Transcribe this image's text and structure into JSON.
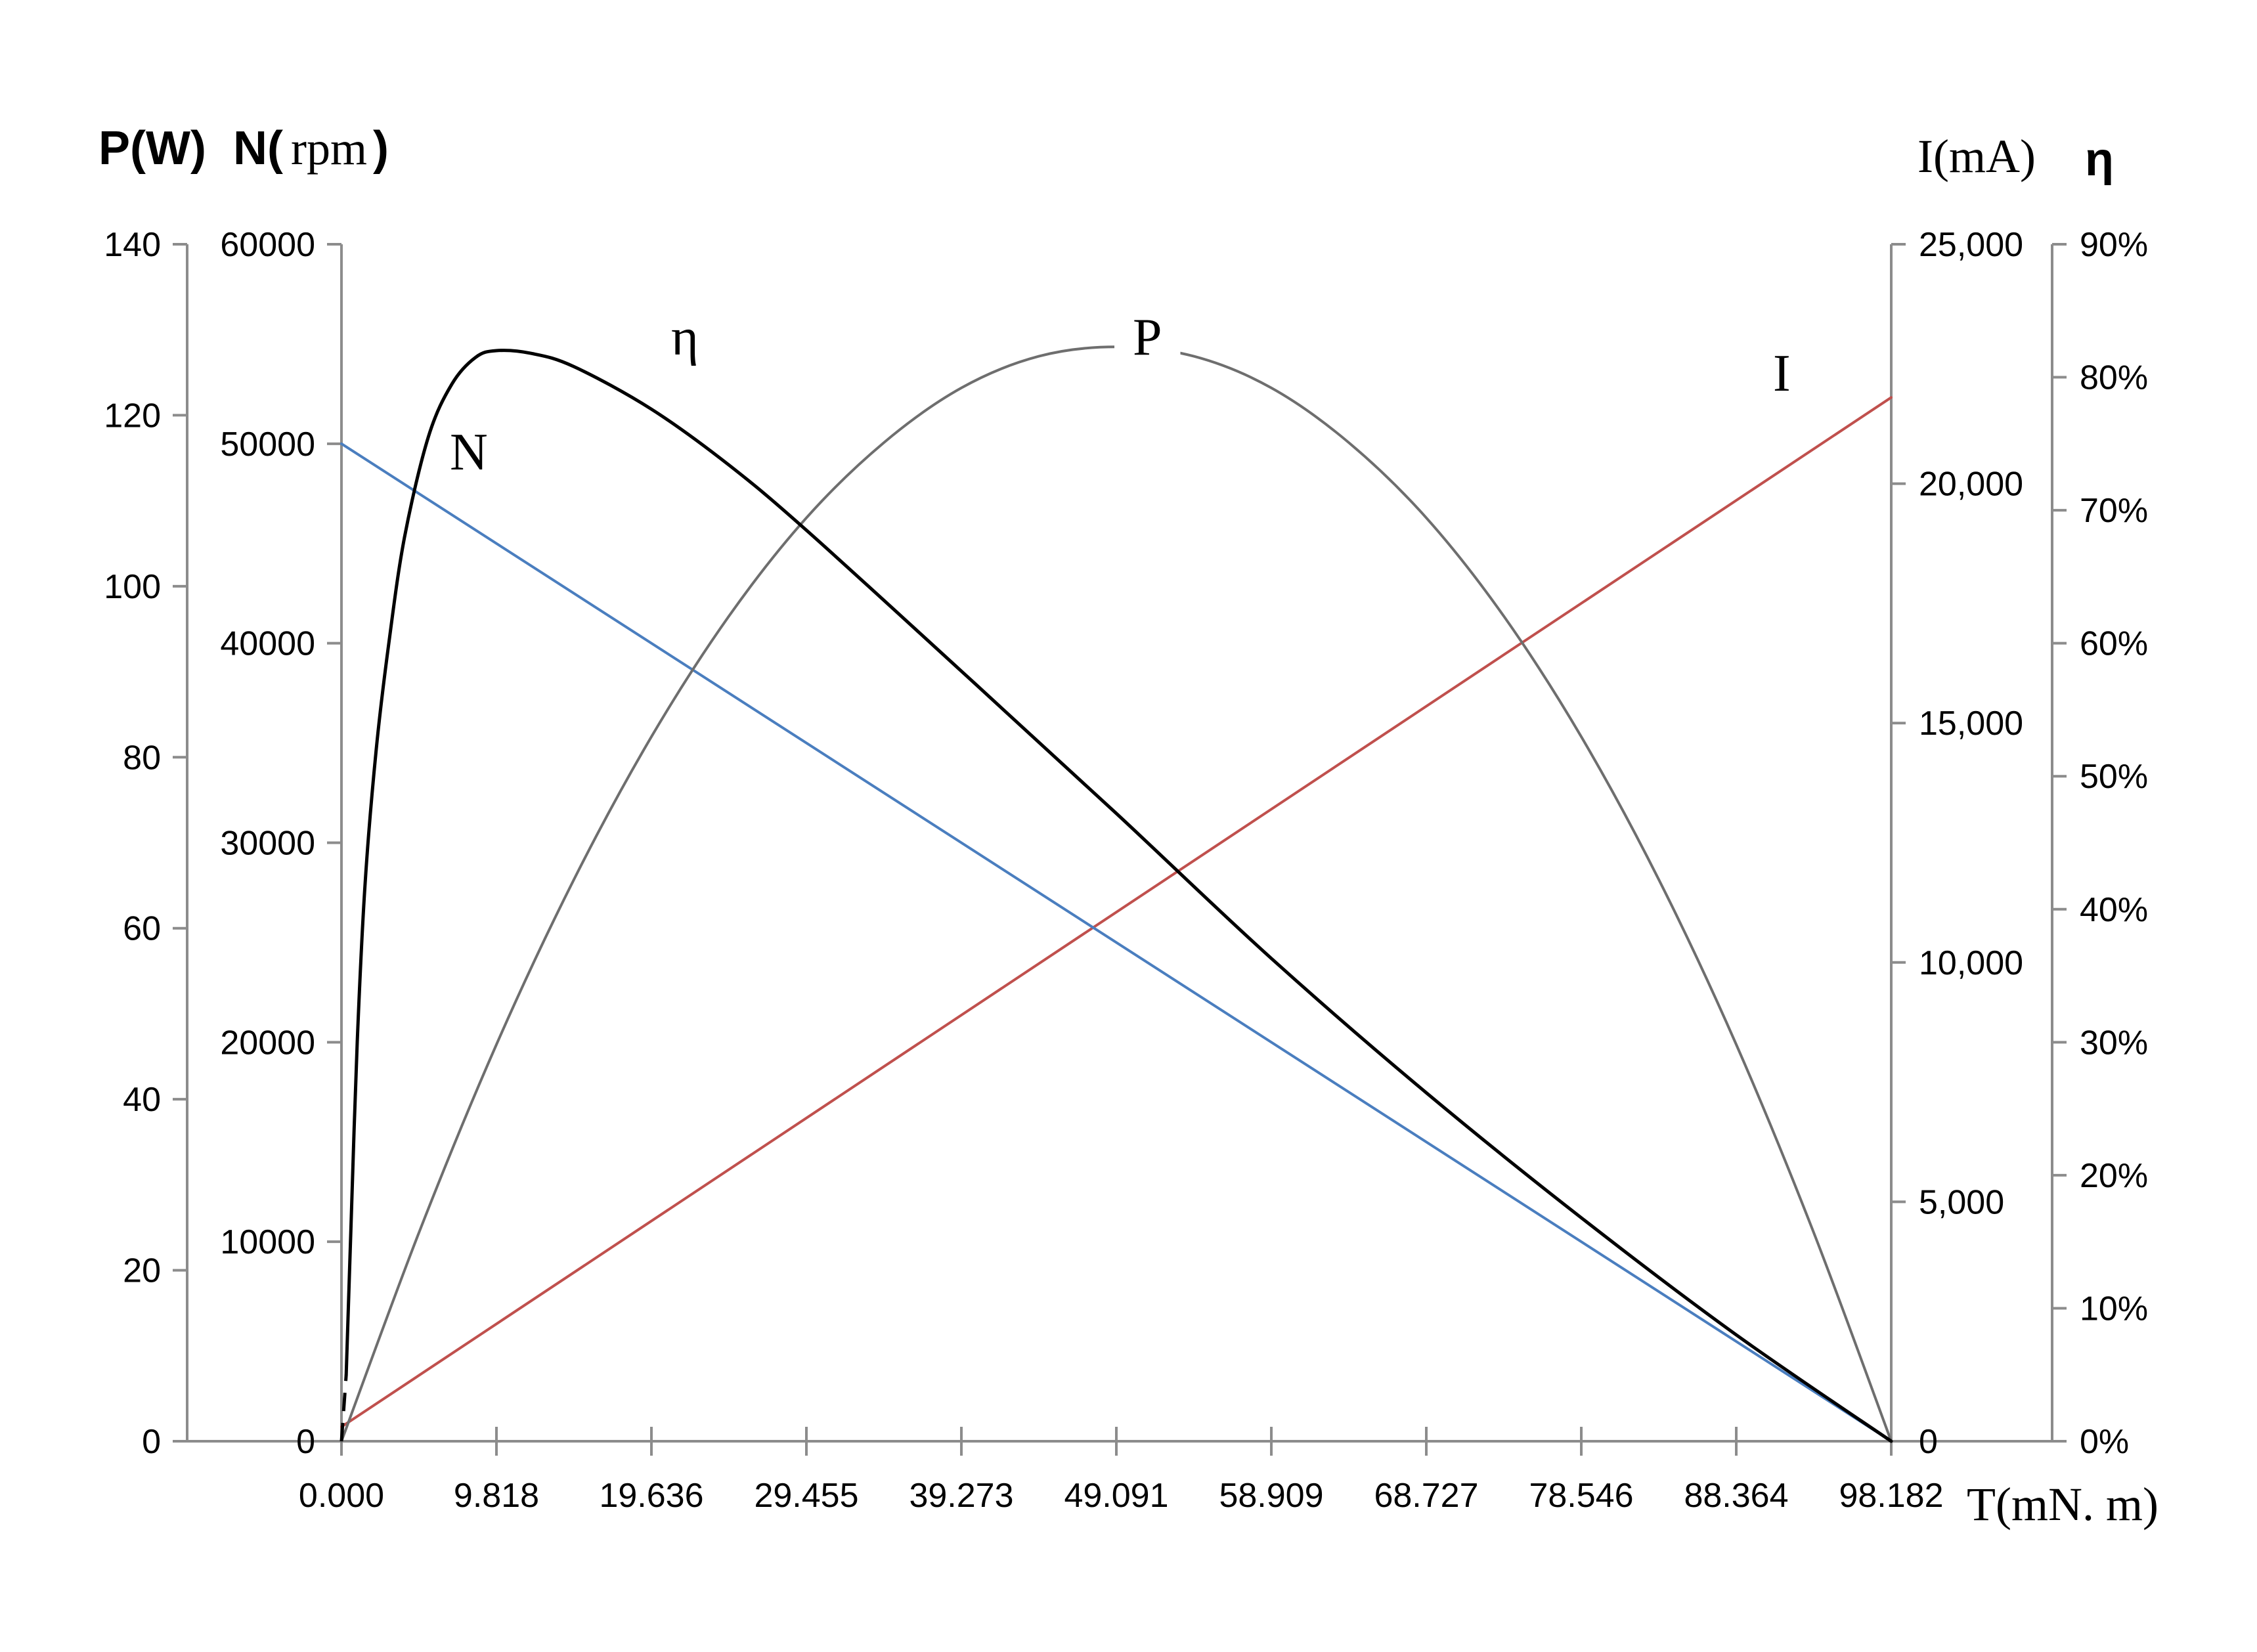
{
  "chart_data": {
    "type": "line",
    "titles": {
      "left_axes_bold_p": "P(W)",
      "left_axes_bold_n": "N(",
      "left_axes_rpm": "rpm",
      "left_axes_close": ")",
      "right_axis_i": "I(mA)",
      "right_axis_eta": "η",
      "x_axis": "T(mN. m)"
    },
    "x_axis": {
      "label": "T(mN. m)",
      "range": [
        0,
        98.182
      ],
      "tick_labels": [
        "0.000",
        "9.818",
        "19.636",
        "29.455",
        "39.273",
        "49.091",
        "58.909",
        "68.727",
        "78.546",
        "88.364",
        "98.182"
      ]
    },
    "y_axes": {
      "power": {
        "label": "P(W)",
        "range": [
          0,
          140
        ],
        "tick_labels": [
          "0",
          "20",
          "40",
          "60",
          "80",
          "100",
          "120",
          "140"
        ]
      },
      "speed": {
        "label": "N(rpm)",
        "range": [
          0,
          60000
        ],
        "tick_labels": [
          "0",
          "10000",
          "20000",
          "30000",
          "40000",
          "50000",
          "60000"
        ]
      },
      "current": {
        "label": "I(mA)",
        "range": [
          0,
          25000
        ],
        "tick_labels": [
          "0",
          "5,000",
          "10,000",
          "15,000",
          "20,000",
          "25,000"
        ]
      },
      "efficiency": {
        "label": "η",
        "range": [
          0,
          90
        ],
        "tick_labels": [
          "0%",
          "10%",
          "20%",
          "30%",
          "40%",
          "50%",
          "60%",
          "70%",
          "80%",
          "90%"
        ]
      }
    },
    "series": [
      {
        "name": "N",
        "axis": "speed",
        "color": "#4a7ebf",
        "x": [
          0,
          98.182
        ],
        "y": [
          50000,
          0
        ]
      },
      {
        "name": "I",
        "axis": "current",
        "color": "#c0504d",
        "x": [
          0,
          98.182
        ],
        "y": [
          300,
          21800
        ]
      },
      {
        "name": "P",
        "axis": "power",
        "color": "#6e6e6e",
        "x": [
          0,
          4.909,
          9.818,
          14.727,
          19.636,
          24.545,
          29.455,
          34.364,
          39.273,
          44.182,
          49.091,
          54.0,
          58.909,
          63.818,
          68.727,
          73.636,
          78.546,
          83.455,
          88.364,
          93.273,
          98.182
        ],
        "y": [
          0,
          24.4,
          46.4,
          65.7,
          82.4,
          96.5,
          108.0,
          116.8,
          123.2,
          126.9,
          128.0,
          126.9,
          123.2,
          116.8,
          108.0,
          96.5,
          82.4,
          65.7,
          46.4,
          24.4,
          0
        ]
      },
      {
        "name": "η",
        "axis": "efficiency",
        "color": "#000000",
        "x": [
          0.3,
          0.6,
          1.0,
          1.5,
          2.2,
          3.0,
          4.0,
          5.5,
          7.0,
          8.5,
          9.818,
          12.0,
          14.727,
          19.636,
          24.545,
          29.455,
          39.273,
          49.091,
          58.909,
          68.727,
          78.546,
          88.364,
          98.182
        ],
        "y": [
          5,
          16,
          30,
          42,
          52,
          60,
          68,
          75.5,
          79.5,
          81.5,
          82.0,
          81.8,
          80.8,
          77.6,
          73.4,
          68.5,
          57.9,
          47.2,
          36.3,
          26.2,
          16.8,
          8.0,
          0
        ]
      }
    ],
    "curve_labels": [
      "η",
      "P",
      "I",
      "N"
    ],
    "grid": false,
    "legend": "none"
  }
}
